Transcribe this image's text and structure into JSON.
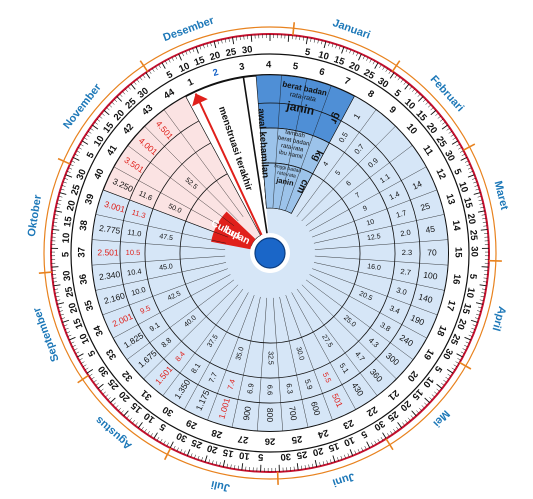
{
  "colors": {
    "month_text": "#1d78b8",
    "outer_ring": "#c8102e",
    "tick_orange": "#e8821e",
    "blue_dark": "#4f8fd6",
    "blue_mid": "#9cc3ea",
    "blue_light": "#d6e6f7",
    "pink": "#fbe3e3",
    "pink_dark": "#f3b8b8",
    "red": "#e0201b",
    "white": "#ffffff",
    "black": "#111111",
    "hub": "#1a66c8"
  },
  "months": [
    {
      "label": "Januari",
      "angle": 20
    },
    {
      "label": "Februari",
      "angle": 48
    },
    {
      "label": "Maret",
      "angle": 76
    },
    {
      "label": "April",
      "angle": 106
    },
    {
      "label": "Mei",
      "angle": 134
    },
    {
      "label": "Juni",
      "angle": 162
    },
    {
      "label": "Juli",
      "angle": 192
    },
    {
      "label": "Agustus",
      "angle": 221
    },
    {
      "label": "September",
      "angle": 250
    },
    {
      "label": "Oktober",
      "angle": 279
    },
    {
      "label": "November",
      "angle": 308
    },
    {
      "label": "Desember",
      "angle": 340
    }
  ],
  "day_marks": [
    "5",
    "10",
    "15",
    "20",
    "25",
    "30"
  ],
  "weeks": [
    "1",
    "2",
    "3",
    "4",
    "5",
    "6",
    "7",
    "8",
    "9",
    "10",
    "11",
    "12",
    "13",
    "14",
    "15",
    "16",
    "17",
    "18",
    "19",
    "20",
    "21",
    "22",
    "23",
    "24",
    "25",
    "26",
    "27",
    "28",
    "29",
    "30",
    "31",
    "32",
    "33",
    "34",
    "35",
    "36",
    "37",
    "38",
    "39",
    "40",
    "41",
    "42",
    "43",
    "44"
  ],
  "current_week": "2",
  "labels": {
    "menstruasi": "menstruasi terakhir",
    "kehamilan": "awal kehamilan",
    "cukup_bulan_1": "Cukup",
    "cukup_bulan_2": "bulan",
    "berat_badan_janin_1": "berat badan",
    "berat_badan_janin_2": "rata-rata",
    "berat_badan_janin_3": "janin",
    "berat_ibu_1": "tambah",
    "berat_ibu_2": "berat badan",
    "berat_ibu_3": "rata-rata",
    "berat_ibu_4": "ibu hamil",
    "tinggi_1": "tinggi badan",
    "tinggi_2": "rata-rata",
    "tinggi_3": "janin",
    "unit_gr": "gr",
    "unit_kg": "kg",
    "unit_cm": "cm"
  },
  "table": {
    "berat_janin": [
      {
        "week": "8",
        "v": "1"
      },
      {
        "week": "12",
        "v": "14"
      },
      {
        "week": "13",
        "v": "25"
      },
      {
        "week": "14",
        "v": "45"
      },
      {
        "week": "15",
        "v": "70"
      },
      {
        "week": "16",
        "v": "100"
      },
      {
        "week": "17",
        "v": "140"
      },
      {
        "week": "18",
        "v": "190"
      },
      {
        "week": "19",
        "v": "240"
      },
      {
        "week": "20",
        "v": "300"
      },
      {
        "week": "21",
        "v": "360"
      },
      {
        "week": "22",
        "v": "430"
      },
      {
        "week": "23",
        "v": "501",
        "red": true
      },
      {
        "week": "24",
        "v": "600"
      },
      {
        "week": "25",
        "v": "700"
      },
      {
        "week": "26",
        "v": "800"
      },
      {
        "week": "27",
        "v": "900"
      },
      {
        "week": "28",
        "v": "1.001",
        "red": true
      },
      {
        "week": "29",
        "v": "1.175"
      },
      {
        "week": "30",
        "v": "1.350"
      },
      {
        "week": "31",
        "v": "1.501",
        "red": true
      },
      {
        "week": "32",
        "v": "1.675"
      },
      {
        "week": "33",
        "v": "1.825"
      },
      {
        "week": "34",
        "v": "2.001",
        "red": true
      },
      {
        "week": "35",
        "v": "2.160"
      },
      {
        "week": "36",
        "v": "2.340"
      },
      {
        "week": "37",
        "v": "2.501",
        "red": true
      },
      {
        "week": "38",
        "v": "2.775"
      },
      {
        "week": "39",
        "v": "3.001",
        "red": true
      },
      {
        "week": "40",
        "v": "3.250"
      },
      {
        "week": "41",
        "v": "3.501",
        "red": true
      },
      {
        "week": "42",
        "v": "4.001",
        "red": true
      },
      {
        "week": "43",
        "v": "4.501",
        "red": true
      }
    ],
    "berat_ibu": [
      {
        "week": "8",
        "v": "0.5"
      },
      {
        "week": "9",
        "v": "0.7"
      },
      {
        "week": "10",
        "v": "0.9"
      },
      {
        "week": "11",
        "v": "1.1"
      },
      {
        "week": "12",
        "v": "1.4"
      },
      {
        "week": "13",
        "v": "1.7"
      },
      {
        "week": "14",
        "v": "2.0"
      },
      {
        "week": "15",
        "v": "2.3"
      },
      {
        "week": "16",
        "v": "2.7"
      },
      {
        "week": "17",
        "v": "3.0"
      },
      {
        "week": "18",
        "v": "3.4"
      },
      {
        "week": "19",
        "v": "3.8"
      },
      {
        "week": "20",
        "v": "4.3"
      },
      {
        "week": "21",
        "v": "4.7"
      },
      {
        "week": "22",
        "v": "5.1"
      },
      {
        "week": "23",
        "v": "5.5",
        "red": true
      },
      {
        "week": "24",
        "v": "5.9"
      },
      {
        "week": "25",
        "v": "6.3"
      },
      {
        "week": "26",
        "v": "6.6"
      },
      {
        "week": "27",
        "v": "6.9"
      },
      {
        "week": "28",
        "v": "7.4",
        "red": true
      },
      {
        "week": "29",
        "v": "7.7"
      },
      {
        "week": "30",
        "v": "8.1"
      },
      {
        "week": "31",
        "v": "8.4",
        "red": true
      },
      {
        "week": "32",
        "v": "8.8"
      },
      {
        "week": "33",
        "v": "9.1"
      },
      {
        "week": "34",
        "v": "9.5",
        "red": true
      },
      {
        "week": "35",
        "v": "10.0"
      },
      {
        "week": "36",
        "v": "10.4"
      },
      {
        "week": "37",
        "v": "10.5",
        "red": true
      },
      {
        "week": "38",
        "v": "11.0"
      },
      {
        "week": "39",
        "v": "11.3",
        "red": true
      },
      {
        "week": "40",
        "v": "11.6"
      }
    ],
    "tinggi": [
      {
        "week": "8",
        "v": "4"
      },
      {
        "week": "9",
        "v": "5"
      },
      {
        "week": "10",
        "v": "6"
      },
      {
        "week": "11",
        "v": "7"
      },
      {
        "week": "12",
        "v": "9"
      },
      {
        "week": "13",
        "v": "10"
      },
      {
        "week": "14",
        "v": "12.5"
      },
      {
        "week": "16",
        "v": "16.0"
      },
      {
        "week": "18",
        "v": "20.5"
      },
      {
        "week": "20",
        "v": "25.0"
      },
      {
        "week": "22",
        "v": "27.5"
      },
      {
        "week": "24",
        "v": "30.0"
      },
      {
        "week": "26",
        "v": "32.5"
      },
      {
        "week": "28",
        "v": "35.0"
      },
      {
        "week": "30",
        "v": "37.5"
      },
      {
        "week": "32",
        "v": "40.0"
      },
      {
        "week": "34",
        "v": "42.5"
      },
      {
        "week": "36",
        "v": "45.0"
      },
      {
        "week": "38",
        "v": "47.5"
      },
      {
        "week": "40",
        "v": "50.0"
      },
      {
        "week": "42",
        "v": "52.5"
      }
    ]
  }
}
